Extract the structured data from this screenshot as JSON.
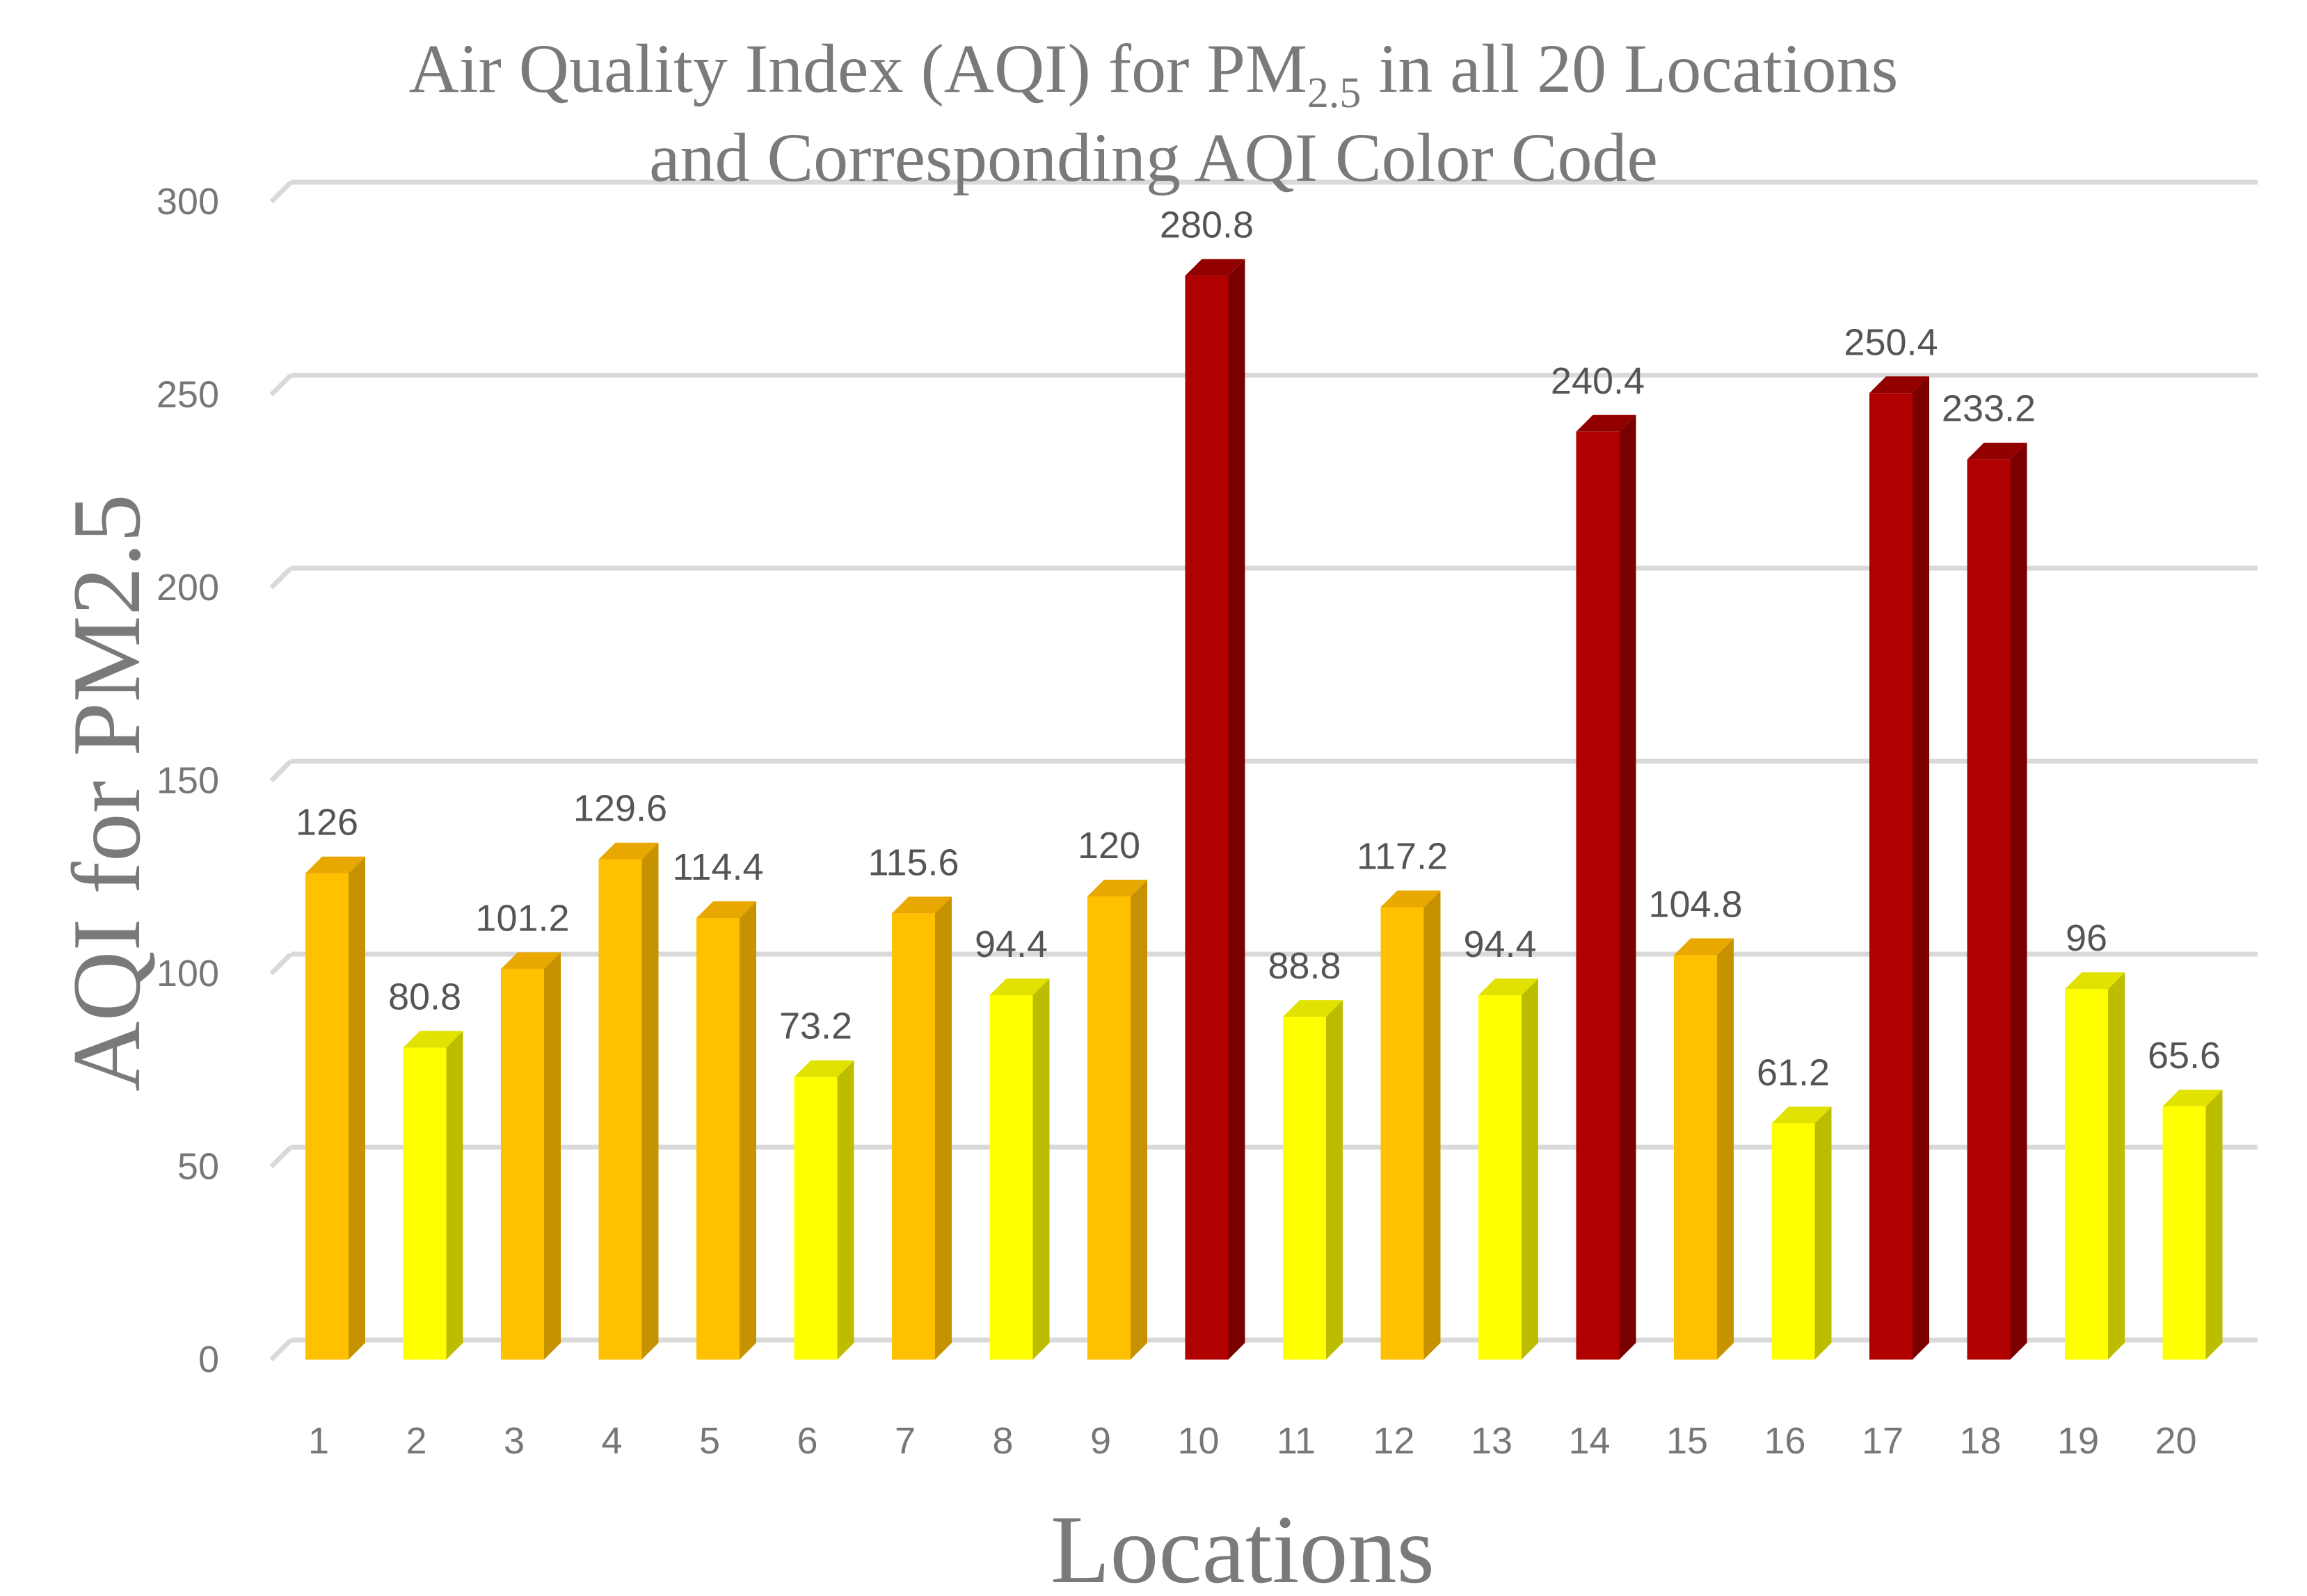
{
  "chart_data": {
    "type": "bar",
    "title": {
      "line1_main": "Air Quality Index (AQI) for PM",
      "line1_sub": "2.5",
      "line1_tail": " in all 20 Locations",
      "line2": "and Corresponding AQI Color Code"
    },
    "xlabel": "Locations",
    "ylabel": "AQI for PM2.5",
    "ylim": [
      0,
      300
    ],
    "yticks": [
      "0",
      "50",
      "100",
      "150",
      "200",
      "250",
      "300"
    ],
    "categories": [
      "1",
      "2",
      "3",
      "4",
      "5",
      "6",
      "7",
      "8",
      "9",
      "10",
      "11",
      "12",
      "13",
      "14",
      "15",
      "16",
      "17",
      "18",
      "19",
      "20"
    ],
    "values": [
      126,
      80.8,
      101.2,
      129.6,
      114.4,
      73.2,
      115.6,
      94.4,
      120,
      280.8,
      88.8,
      117.2,
      94.4,
      240.4,
      104.8,
      61.2,
      250.4,
      233.2,
      96,
      65.6
    ],
    "value_labels": [
      "126",
      "80.8",
      "101.2",
      "129.6",
      "114.4",
      "73.2",
      "115.6",
      "94.4",
      "120",
      "280.8",
      "88.8",
      "117.2",
      "94.4",
      "240.4",
      "104.8",
      "61.2",
      "250.4",
      "233.2",
      "96",
      "65.6"
    ],
    "bar_colors": [
      "orange",
      "yellow",
      "orange",
      "orange",
      "orange",
      "yellow",
      "orange",
      "yellow",
      "orange",
      "red",
      "yellow",
      "orange",
      "yellow",
      "red",
      "orange",
      "yellow",
      "red",
      "red",
      "yellow",
      "yellow"
    ],
    "grid": true,
    "legend": "none",
    "style": "3d-column"
  },
  "colors": {
    "orange": {
      "front": "#FFC000",
      "side": "#C79200",
      "top": "#E8A800"
    },
    "yellow": {
      "front": "#FFFF00",
      "side": "#BDBD00",
      "top": "#E2E200"
    },
    "red": {
      "front": "#B00000",
      "side": "#7A0000",
      "top": "#920000"
    }
  }
}
